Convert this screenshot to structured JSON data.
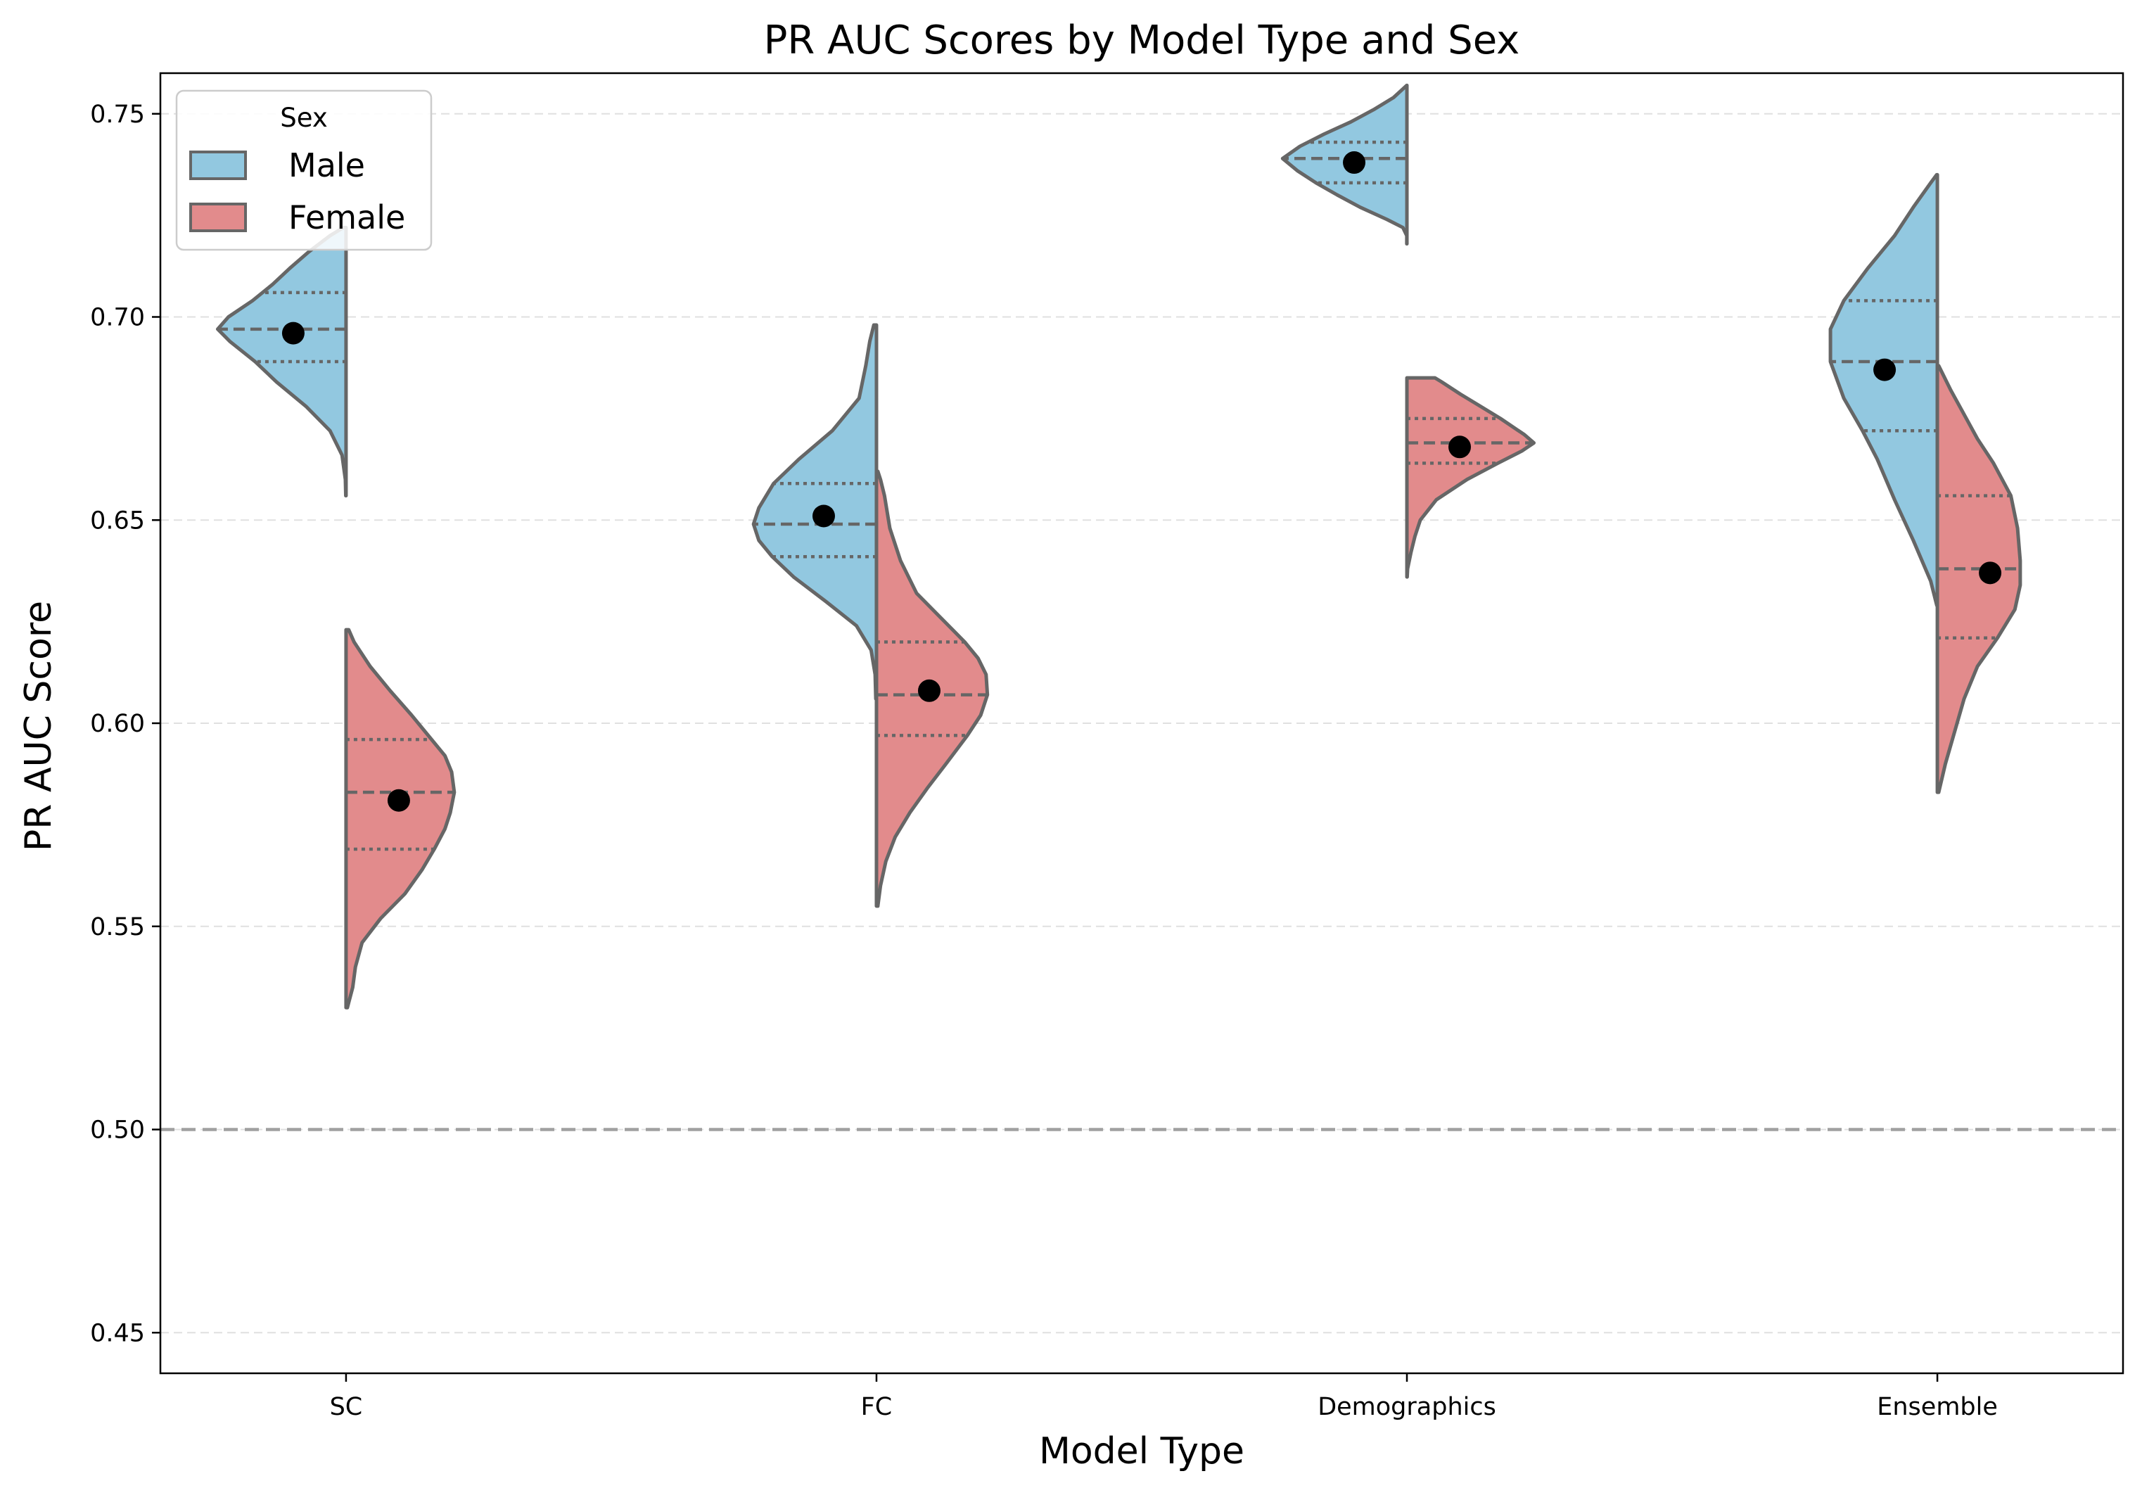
{
  "chart_data": {
    "type": "violin",
    "title": "PR AUC Scores by Model Type and Sex",
    "xlabel": "Model Type",
    "ylabel": "PR AUC Score",
    "ylim": [
      0.44,
      0.76
    ],
    "yticks": [
      "0.45",
      "0.50",
      "0.55",
      "0.60",
      "0.65",
      "0.70",
      "0.75"
    ],
    "categories": [
      "SC",
      "FC",
      "Demographics",
      "Ensemble"
    ],
    "grid": "horizontal dashed",
    "reference_line": {
      "y": 0.5,
      "style": "dashed",
      "color": "#a0a0a0"
    },
    "legend": {
      "title": "Sex",
      "placement": "top-left",
      "entries": [
        {
          "label": "Male",
          "color": "#92c8e0"
        },
        {
          "label": "Female",
          "color": "#e28b8c"
        }
      ]
    },
    "colors": {
      "male": "#92c8e0",
      "female": "#e28b8c",
      "outline": "#666666",
      "mean_dot": "#000000"
    },
    "series": [
      {
        "name": "Male",
        "side": "left",
        "violins": [
          {
            "category": "SC",
            "min": 0.656,
            "max": 0.722,
            "q1": 0.689,
            "median": 0.697,
            "q3": 0.706,
            "mean": 0.696,
            "density": [
              [
                0.656,
                0.002
              ],
              [
                0.66,
                0.005
              ],
              [
                0.666,
                0.03
              ],
              [
                0.672,
                0.12
              ],
              [
                0.678,
                0.3
              ],
              [
                0.684,
                0.52
              ],
              [
                0.689,
                0.68
              ],
              [
                0.694,
                0.87
              ],
              [
                0.697,
                0.96
              ],
              [
                0.7,
                0.88
              ],
              [
                0.704,
                0.7
              ],
              [
                0.708,
                0.55
              ],
              [
                0.712,
                0.42
              ],
              [
                0.716,
                0.28
              ],
              [
                0.72,
                0.12
              ],
              [
                0.722,
                0.02
              ]
            ]
          },
          {
            "category": "FC",
            "min": 0.606,
            "max": 0.698,
            "q1": 0.641,
            "median": 0.649,
            "q3": 0.659,
            "mean": 0.651,
            "density": [
              [
                0.606,
                0.005
              ],
              [
                0.612,
                0.01
              ],
              [
                0.618,
                0.04
              ],
              [
                0.624,
                0.15
              ],
              [
                0.63,
                0.38
              ],
              [
                0.636,
                0.62
              ],
              [
                0.641,
                0.78
              ],
              [
                0.645,
                0.88
              ],
              [
                0.649,
                0.92
              ],
              [
                0.653,
                0.88
              ],
              [
                0.659,
                0.77
              ],
              [
                0.665,
                0.58
              ],
              [
                0.672,
                0.33
              ],
              [
                0.68,
                0.13
              ],
              [
                0.688,
                0.08
              ],
              [
                0.694,
                0.05
              ],
              [
                0.698,
                0.02
              ]
            ]
          },
          {
            "category": "Demographics",
            "min": 0.718,
            "max": 0.757,
            "q1": 0.733,
            "median": 0.739,
            "q3": 0.743,
            "mean": 0.738,
            "density": [
              [
                0.718,
                0.001
              ],
              [
                0.72,
                0.001
              ],
              [
                0.722,
                0.03
              ],
              [
                0.724,
                0.15
              ],
              [
                0.727,
                0.35
              ],
              [
                0.73,
                0.52
              ],
              [
                0.733,
                0.68
              ],
              [
                0.736,
                0.82
              ],
              [
                0.739,
                0.93
              ],
              [
                0.742,
                0.8
              ],
              [
                0.745,
                0.62
              ],
              [
                0.748,
                0.42
              ],
              [
                0.751,
                0.25
              ],
              [
                0.754,
                0.1
              ],
              [
                0.757,
                0.001
              ]
            ]
          },
          {
            "category": "Ensemble",
            "min": 0.629,
            "max": 0.735,
            "q1": 0.672,
            "median": 0.689,
            "q3": 0.704,
            "mean": 0.687,
            "density": [
              [
                0.629,
                0.004
              ],
              [
                0.635,
                0.05
              ],
              [
                0.645,
                0.18
              ],
              [
                0.655,
                0.32
              ],
              [
                0.665,
                0.45
              ],
              [
                0.672,
                0.56
              ],
              [
                0.68,
                0.7
              ],
              [
                0.689,
                0.8
              ],
              [
                0.697,
                0.8
              ],
              [
                0.704,
                0.7
              ],
              [
                0.712,
                0.52
              ],
              [
                0.72,
                0.32
              ],
              [
                0.727,
                0.18
              ],
              [
                0.733,
                0.05
              ],
              [
                0.735,
                0.005
              ]
            ]
          }
        ]
      },
      {
        "name": "Female",
        "side": "right",
        "violins": [
          {
            "category": "SC",
            "min": 0.53,
            "max": 0.623,
            "q1": 0.569,
            "median": 0.583,
            "q3": 0.596,
            "mean": 0.581,
            "density": [
              [
                0.53,
                0.01
              ],
              [
                0.535,
                0.05
              ],
              [
                0.54,
                0.07
              ],
              [
                0.546,
                0.12
              ],
              [
                0.552,
                0.26
              ],
              [
                0.558,
                0.44
              ],
              [
                0.564,
                0.57
              ],
              [
                0.569,
                0.66
              ],
              [
                0.574,
                0.74
              ],
              [
                0.578,
                0.78
              ],
              [
                0.583,
                0.81
              ],
              [
                0.588,
                0.79
              ],
              [
                0.592,
                0.74
              ],
              [
                0.596,
                0.64
              ],
              [
                0.602,
                0.49
              ],
              [
                0.608,
                0.33
              ],
              [
                0.614,
                0.18
              ],
              [
                0.62,
                0.06
              ],
              [
                0.623,
                0.02
              ]
            ]
          },
          {
            "category": "FC",
            "min": 0.555,
            "max": 0.662,
            "q1": 0.597,
            "median": 0.607,
            "q3": 0.62,
            "mean": 0.608,
            "density": [
              [
                0.555,
                0.01
              ],
              [
                0.56,
                0.03
              ],
              [
                0.566,
                0.07
              ],
              [
                0.572,
                0.14
              ],
              [
                0.578,
                0.25
              ],
              [
                0.584,
                0.38
              ],
              [
                0.59,
                0.52
              ],
              [
                0.597,
                0.68
              ],
              [
                0.602,
                0.78
              ],
              [
                0.607,
                0.83
              ],
              [
                0.612,
                0.82
              ],
              [
                0.616,
                0.76
              ],
              [
                0.62,
                0.66
              ],
              [
                0.626,
                0.48
              ],
              [
                0.632,
                0.3
              ],
              [
                0.64,
                0.18
              ],
              [
                0.648,
                0.1
              ],
              [
                0.656,
                0.06
              ],
              [
                0.66,
                0.03
              ],
              [
                0.662,
                0.01
              ]
            ]
          },
          {
            "category": "Demographics",
            "min": 0.636,
            "max": 0.685,
            "q1": 0.664,
            "median": 0.669,
            "q3": 0.675,
            "mean": 0.668,
            "density": [
              [
                0.636,
                0.002
              ],
              [
                0.638,
                0.005
              ],
              [
                0.642,
                0.03
              ],
              [
                0.646,
                0.06
              ],
              [
                0.65,
                0.1
              ],
              [
                0.655,
                0.22
              ],
              [
                0.66,
                0.45
              ],
              [
                0.664,
                0.68
              ],
              [
                0.667,
                0.86
              ],
              [
                0.669,
                0.95
              ],
              [
                0.671,
                0.88
              ],
              [
                0.675,
                0.7
              ],
              [
                0.678,
                0.55
              ],
              [
                0.681,
                0.4
              ],
              [
                0.684,
                0.26
              ],
              [
                0.685,
                0.21
              ]
            ]
          },
          {
            "category": "Ensemble",
            "min": 0.583,
            "max": 0.688,
            "q1": 0.621,
            "median": 0.638,
            "q3": 0.656,
            "mean": 0.637,
            "density": [
              [
                0.583,
                0.01
              ],
              [
                0.59,
                0.06
              ],
              [
                0.598,
                0.13
              ],
              [
                0.606,
                0.2
              ],
              [
                0.614,
                0.3
              ],
              [
                0.621,
                0.45
              ],
              [
                0.628,
                0.58
              ],
              [
                0.634,
                0.62
              ],
              [
                0.64,
                0.62
              ],
              [
                0.648,
                0.6
              ],
              [
                0.656,
                0.55
              ],
              [
                0.664,
                0.42
              ],
              [
                0.67,
                0.3
              ],
              [
                0.676,
                0.2
              ],
              [
                0.682,
                0.1
              ],
              [
                0.686,
                0.04
              ],
              [
                0.688,
                0.01
              ]
            ]
          }
        ]
      }
    ]
  }
}
